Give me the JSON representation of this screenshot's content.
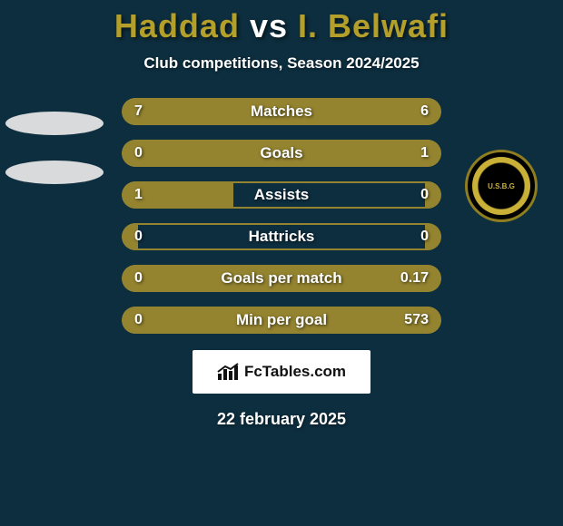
{
  "background_color": "#0d2e3f",
  "title": {
    "player1": "Haddad",
    "vs": "vs",
    "player2": "I. Belwafi",
    "color_left": "#b39f2a",
    "color_vs": "#ffffff",
    "color_right": "#b39f2a"
  },
  "subtitle": "Club competitions, Season 2024/2025",
  "subtitle_color": "#ffffff",
  "left_badge": {
    "ellipse_color": "#d9dadb"
  },
  "right_badge": {
    "ring_color": "#8f7e1f",
    "bg_color": "#000000",
    "accent_color": "#c9b037",
    "text": "U.S.B.G"
  },
  "stats": {
    "track_color": "#0d2e3f",
    "border_color": "#948430",
    "fill_color": "#948430",
    "label_color": "#ffffff",
    "value_color": "#ffffff",
    "rows": [
      {
        "label": "Matches",
        "left": "7",
        "right": "6",
        "left_pct": 54,
        "right_pct": 46
      },
      {
        "label": "Goals",
        "left": "0",
        "right": "1",
        "left_pct": 15,
        "right_pct": 85
      },
      {
        "label": "Assists",
        "left": "1",
        "right": "0",
        "left_pct": 35,
        "right_pct": 5
      },
      {
        "label": "Hattricks",
        "left": "0",
        "right": "0",
        "left_pct": 5,
        "right_pct": 5
      },
      {
        "label": "Goals per match",
        "left": "0",
        "right": "0.17",
        "left_pct": 5,
        "right_pct": 95
      },
      {
        "label": "Min per goal",
        "left": "0",
        "right": "573",
        "left_pct": 5,
        "right_pct": 95
      }
    ]
  },
  "footer_brand": "FcTables.com",
  "date": "22 february 2025"
}
